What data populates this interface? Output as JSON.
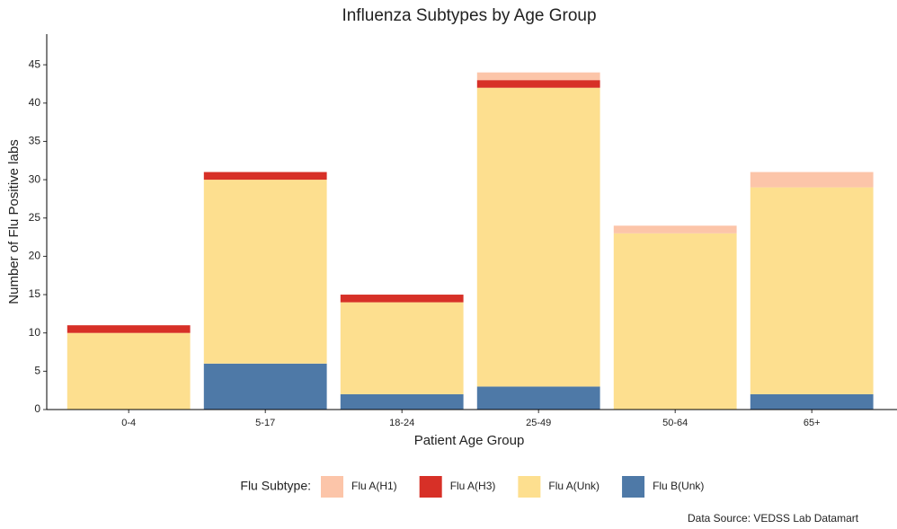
{
  "chart_data": {
    "type": "stacked_bar",
    "title": "Influenza Subtypes by Age Group",
    "x_label": "Patient Age Group",
    "y_label": "Number of Flu Positive labs",
    "categories": [
      "0-4",
      "5-17",
      "18-24",
      "25-49",
      "50-64",
      "65+"
    ],
    "series": [
      {
        "name": "Flu A(H1)",
        "color": "#fcc5a9",
        "values": [
          0,
          0,
          0,
          1,
          1,
          2
        ]
      },
      {
        "name": "Flu A(H3)",
        "color": "#d73027",
        "values": [
          1,
          1,
          1,
          1,
          0,
          0
        ]
      },
      {
        "name": "Flu A(Unk)",
        "color": "#fddf8f",
        "values": [
          10,
          24,
          12,
          39,
          23,
          27
        ]
      },
      {
        "name": "Flu B(Unk)",
        "color": "#4e79a7",
        "values": [
          0,
          6,
          2,
          3,
          0,
          2
        ]
      }
    ],
    "ylim": [
      0,
      49
    ],
    "yticks": [
      0,
      5,
      10,
      15,
      20,
      25,
      30,
      35,
      40,
      45
    ],
    "legend_title": "Flu Subtype:",
    "caption": "Data Source: VEDSS Lab Datamart"
  }
}
